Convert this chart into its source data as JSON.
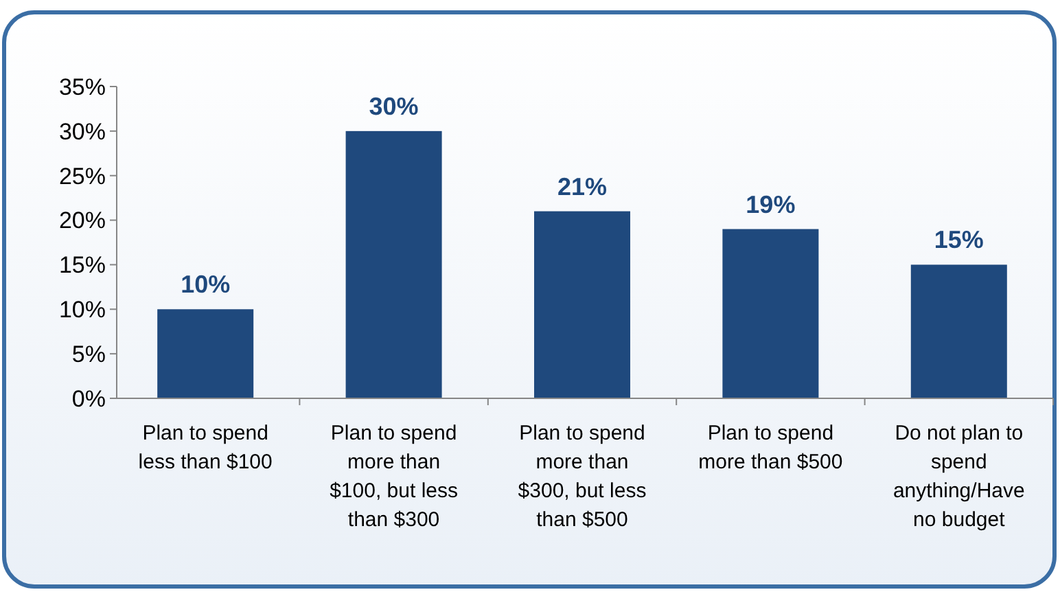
{
  "chart_data": {
    "type": "bar",
    "categories": [
      "Plan to spend less than $100",
      "Plan to spend more than $100, but less than $300",
      "Plan to spend more than $300, but less than $500",
      "Plan to spend more than $500",
      "Do not plan to spend anything/Have no budget"
    ],
    "values": [
      10,
      30,
      21,
      19,
      15
    ],
    "color": "#1f497d",
    "ylim": [
      0,
      35
    ],
    "yticks": [
      {
        "value": 0,
        "label": "0%"
      },
      {
        "value": 5,
        "label": "5%"
      },
      {
        "value": 10,
        "label": "10%"
      },
      {
        "value": 15,
        "label": "15%"
      },
      {
        "value": 20,
        "label": "20%"
      },
      {
        "value": 25,
        "label": "25%"
      },
      {
        "value": 30,
        "label": "30%"
      },
      {
        "value": 35,
        "label": "35%"
      }
    ],
    "value_labels": [
      "10%",
      "30%",
      "21%",
      "19%",
      "15%"
    ],
    "grid": false
  }
}
